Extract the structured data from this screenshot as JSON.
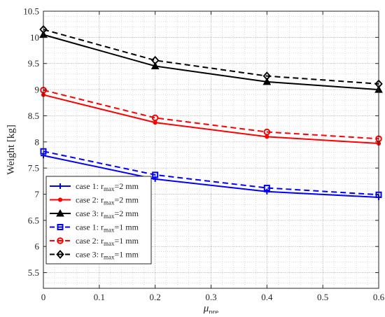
{
  "chart_data": {
    "type": "line",
    "title": "",
    "xlabel": "μ",
    "xlabel_sub": "pre",
    "ylabel": "Weight [kg]",
    "xlim": [
      0,
      0.6
    ],
    "ylim": [
      5.2,
      10.5
    ],
    "xticks": [
      0,
      0.1,
      0.2,
      0.3,
      0.4,
      0.5,
      0.6
    ],
    "xtick_labels": [
      "0",
      "0.1",
      "0.2",
      "0.3",
      "0.4",
      "0.5",
      "0.6"
    ],
    "yticks": [
      5.5,
      6,
      6.5,
      7,
      7.5,
      8,
      8.5,
      9,
      9.5,
      10,
      10.5
    ],
    "ytick_labels": [
      "5.5",
      "6",
      "6.5",
      "7",
      "7.5",
      "8",
      "8.5",
      "9",
      "9.5",
      "10",
      "10.5"
    ],
    "grid": true,
    "legend_position": "bottom-left",
    "x": [
      0,
      0.2,
      0.4,
      0.6
    ],
    "series": [
      {
        "name": "case 1: r",
        "sub": "max",
        "suffix": "=2 mm",
        "color": "#0000ff",
        "dash": "solid",
        "marker": "plus",
        "values": [
          7.74,
          7.29,
          7.05,
          6.94
        ]
      },
      {
        "name": "case 2: r",
        "sub": "max",
        "suffix": "=2 mm",
        "color": "#ff0000",
        "dash": "solid",
        "marker": "dot",
        "values": [
          8.9,
          8.37,
          8.1,
          7.97
        ]
      },
      {
        "name": "case 3: r",
        "sub": "max",
        "suffix": "=2 mm",
        "color": "#000000",
        "dash": "solid",
        "marker": "triangle",
        "values": [
          10.05,
          9.45,
          9.15,
          9.0
        ]
      },
      {
        "name": "case 1: r",
        "sub": "max",
        "suffix": "=1 mm",
        "color": "#0000ff",
        "dash": "dashed",
        "marker": "square",
        "values": [
          7.82,
          7.37,
          7.12,
          6.99
        ]
      },
      {
        "name": "case 2: r",
        "sub": "max",
        "suffix": "=1 mm",
        "color": "#ff0000",
        "dash": "dashed",
        "marker": "circle",
        "values": [
          8.99,
          8.46,
          8.19,
          8.06
        ]
      },
      {
        "name": "case 3: r",
        "sub": "max",
        "suffix": "=1 mm",
        "color": "#000000",
        "dash": "dashed",
        "marker": "diamond",
        "values": [
          10.15,
          9.56,
          9.26,
          9.11
        ]
      }
    ]
  }
}
